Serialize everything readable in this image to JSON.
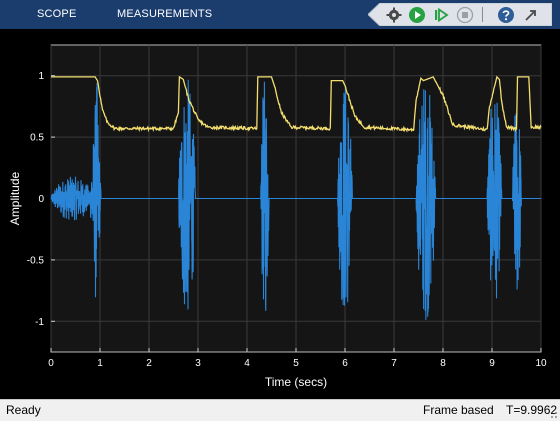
{
  "toolstrip": {
    "tabs": [
      {
        "label": "SCOPE"
      },
      {
        "label": "MEASUREMENTS"
      }
    ],
    "quick_access": [
      {
        "icon": "settings-gear-icon"
      },
      {
        "icon": "run-icon"
      },
      {
        "icon": "step-forward-icon"
      },
      {
        "icon": "stop-icon"
      },
      {
        "icon": "help-icon"
      },
      {
        "icon": "undock-icon"
      }
    ]
  },
  "colors": {
    "toolstrip_bg": "#1b3d6d",
    "axes_bg": "#151515",
    "grid": "#3a3a3a",
    "axis_text": "#ffffff",
    "series_signal": "#2a85d7",
    "series_envelope": "#f3df6f",
    "statusbar_bg": "#f0f0f0"
  },
  "chart_data": {
    "type": "line",
    "title": "",
    "xlabel": "Time (secs)",
    "ylabel": "Amplitude",
    "xlim": [
      0,
      10
    ],
    "ylim": [
      -1.25,
      1.25
    ],
    "xticks": [
      0,
      1,
      2,
      3,
      4,
      5,
      6,
      7,
      8,
      9,
      10
    ],
    "xtick_labels": [
      "0",
      "1",
      "2",
      "3",
      "4",
      "5",
      "6",
      "7",
      "8",
      "9",
      "10"
    ],
    "yticks": [
      1,
      0.5,
      0,
      -0.5,
      -1
    ],
    "ytick_labels": [
      "1",
      "0.5",
      "0",
      "-0.5",
      "-1"
    ],
    "grid": true,
    "legend": "none",
    "series": [
      {
        "color": "#f3df6f",
        "x": [
          0,
          0.9,
          0.95,
          1.05,
          1.15,
          1.3,
          2.5,
          2.6,
          2.62,
          2.7,
          2.8,
          3.0,
          3.2,
          4.2,
          4.22,
          4.5,
          4.55,
          4.7,
          4.9,
          5.7,
          5.72,
          5.95,
          6.0,
          6.2,
          6.4,
          7.4,
          7.45,
          7.55,
          7.6,
          7.8,
          8.0,
          8.2,
          8.9,
          8.95,
          9.1,
          9.15,
          9.2,
          9.3,
          9.5,
          9.52,
          9.75,
          9.8,
          10.0
        ],
        "y": [
          0.99,
          0.99,
          0.96,
          0.72,
          0.62,
          0.57,
          0.57,
          0.7,
          0.99,
          0.97,
          0.82,
          0.64,
          0.58,
          0.57,
          0.99,
          0.99,
          0.93,
          0.7,
          0.58,
          0.57,
          0.96,
          0.96,
          0.92,
          0.67,
          0.58,
          0.56,
          0.8,
          0.98,
          0.96,
          0.99,
          0.84,
          0.6,
          0.56,
          0.75,
          0.99,
          0.97,
          0.78,
          0.58,
          0.57,
          0.99,
          0.99,
          0.58,
          0.58
        ]
      },
      {
        "color": "#2a85d7",
        "bursts": [
          {
            "start": 0.0,
            "end": 0.88,
            "peak": 0.18
          },
          {
            "start": 0.8,
            "end": 1.02,
            "peak": 0.58
          },
          {
            "start": 0.88,
            "end": 0.98,
            "peak": 1.0
          },
          {
            "start": 2.6,
            "end": 2.95,
            "peak": 1.0
          },
          {
            "start": 4.28,
            "end": 4.45,
            "peak": 1.0
          },
          {
            "start": 5.85,
            "end": 6.15,
            "peak": 1.0
          },
          {
            "start": 7.45,
            "end": 7.85,
            "peak": 1.0
          },
          {
            "start": 8.9,
            "end": 9.2,
            "peak": 0.88
          },
          {
            "start": 9.42,
            "end": 9.6,
            "peak": 0.85
          }
        ]
      }
    ]
  },
  "status": {
    "ready": "Ready",
    "mode": "Frame based",
    "time": "T=9.9962"
  }
}
